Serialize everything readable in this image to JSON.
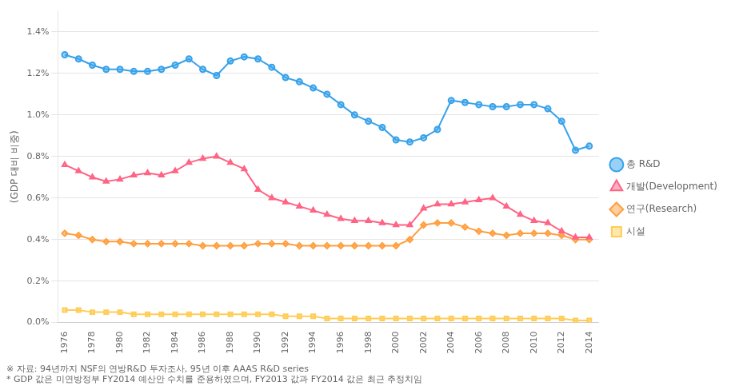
{
  "chart_data": {
    "type": "line",
    "x": [
      1976,
      1977,
      1978,
      1979,
      1980,
      1981,
      1982,
      1983,
      1984,
      1985,
      1986,
      1987,
      1988,
      1989,
      1990,
      1991,
      1992,
      1993,
      1994,
      1995,
      1996,
      1997,
      1998,
      1999,
      2000,
      2001,
      2002,
      2003,
      2004,
      2005,
      2006,
      2007,
      2008,
      2009,
      2010,
      2011,
      2012,
      2013,
      2014
    ],
    "series": [
      {
        "name": "총 R&D",
        "marker": "circle",
        "values": [
          1.29,
          1.27,
          1.24,
          1.22,
          1.22,
          1.21,
          1.21,
          1.22,
          1.24,
          1.27,
          1.22,
          1.19,
          1.26,
          1.28,
          1.27,
          1.23,
          1.18,
          1.16,
          1.13,
          1.1,
          1.05,
          1.0,
          0.97,
          0.94,
          0.88,
          0.87,
          0.89,
          0.93,
          1.07,
          1.06,
          1.05,
          1.04,
          1.04,
          1.05,
          1.05,
          1.03,
          0.97,
          0.83,
          0.85
        ]
      },
      {
        "name": "개발(Development)",
        "marker": "triangle",
        "values": [
          0.76,
          0.73,
          0.7,
          0.68,
          0.69,
          0.71,
          0.72,
          0.71,
          0.73,
          0.77,
          0.79,
          0.8,
          0.77,
          0.74,
          0.64,
          0.6,
          0.58,
          0.56,
          0.54,
          0.52,
          0.5,
          0.49,
          0.49,
          0.48,
          0.47,
          0.47,
          0.55,
          0.57,
          0.57,
          0.58,
          0.59,
          0.6,
          0.56,
          0.52,
          0.49,
          0.48,
          0.44,
          0.41,
          0.41
        ]
      },
      {
        "name": "연구(Research)",
        "marker": "diamond",
        "values": [
          0.43,
          0.42,
          0.4,
          0.39,
          0.39,
          0.38,
          0.38,
          0.38,
          0.38,
          0.38,
          0.37,
          0.37,
          0.37,
          0.37,
          0.38,
          0.38,
          0.38,
          0.37,
          0.37,
          0.37,
          0.37,
          0.37,
          0.37,
          0.37,
          0.37,
          0.4,
          0.47,
          0.48,
          0.48,
          0.46,
          0.44,
          0.43,
          0.42,
          0.43,
          0.43,
          0.43,
          0.42,
          0.4,
          0.4
        ]
      },
      {
        "name": "시설",
        "marker": "square",
        "values": [
          0.06,
          0.06,
          0.05,
          0.05,
          0.05,
          0.04,
          0.04,
          0.04,
          0.04,
          0.04,
          0.04,
          0.04,
          0.04,
          0.04,
          0.04,
          0.04,
          0.03,
          0.03,
          0.03,
          0.02,
          0.02,
          0.02,
          0.02,
          0.02,
          0.02,
          0.02,
          0.02,
          0.02,
          0.02,
          0.02,
          0.02,
          0.02,
          0.02,
          0.02,
          0.02,
          0.02,
          0.02,
          0.01,
          0.01
        ]
      }
    ],
    "ylabel": "(GDP 대비 비중)",
    "annotations": [
      "※ 자료: 94년까지 NSF의 연방R&D 투자조사, 95년 이후 AAAS R&D series",
      "* GDP 값은 미연방정부 FY2014 예산안 수치를 준용하였으며, FY2013 값과 FY2014 값은 최근 추정치임"
    ],
    "xlim": [
      1975.5,
      2014.7
    ],
    "xticks": [
      1976,
      1978,
      1980,
      1982,
      1984,
      1986,
      1988,
      1990,
      1992,
      1994,
      1996,
      1998,
      2000,
      2002,
      2004,
      2006,
      2008,
      2010,
      2012,
      2014
    ],
    "ylim": [
      0.0,
      1.5
    ],
    "yticks": [
      {
        "value": 0.0,
        "label": "0.0%"
      },
      {
        "value": 0.2,
        "label": "0.2%"
      },
      {
        "value": 0.4,
        "label": "0.4%"
      },
      {
        "value": 0.6,
        "label": "0.6%"
      },
      {
        "value": 0.8,
        "label": "0.8%"
      },
      {
        "value": 1.0,
        "label": "1.0%"
      },
      {
        "value": 1.2,
        "label": "1.2%"
      },
      {
        "value": 1.4,
        "label": "1.4%"
      }
    ],
    "grid": "y",
    "legend": "right"
  }
}
